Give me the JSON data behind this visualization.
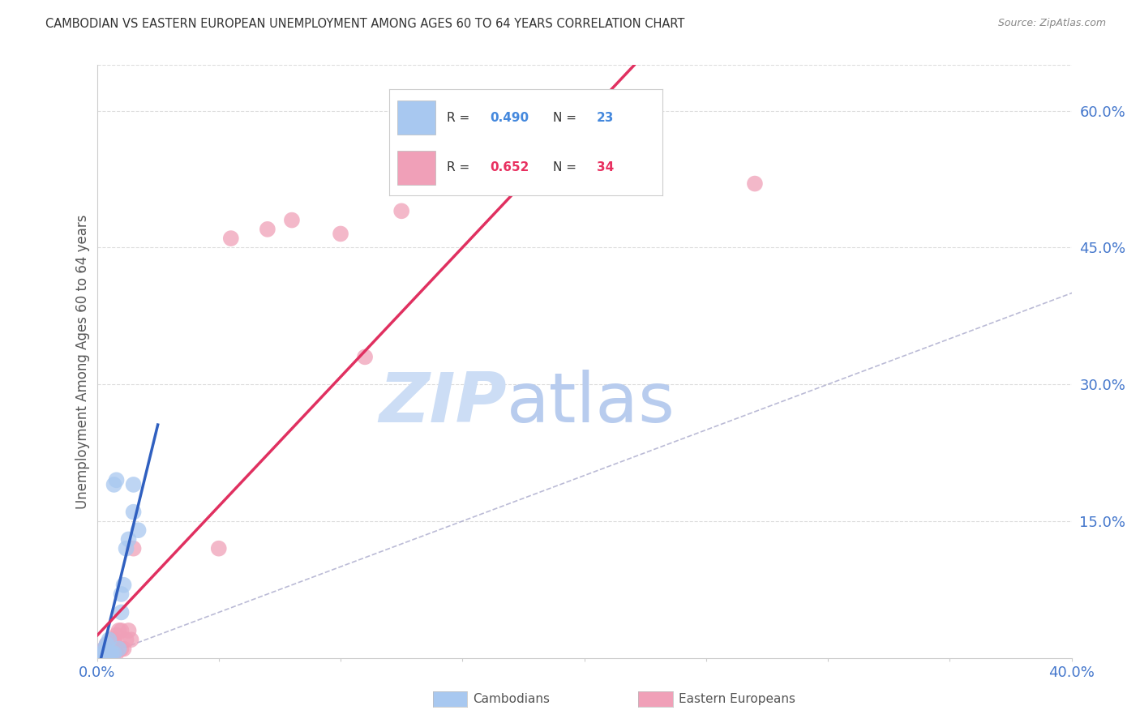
{
  "title": "CAMBODIAN VS EASTERN EUROPEAN UNEMPLOYMENT AMONG AGES 60 TO 64 YEARS CORRELATION CHART",
  "source": "Source: ZipAtlas.com",
  "ylabel": "Unemployment Among Ages 60 to 64 years",
  "legend_R_blue": "0.490",
  "legend_N_blue": "23",
  "legend_R_pink": "0.652",
  "legend_N_pink": "34",
  "blue_color": "#a8c8f0",
  "pink_color": "#f0a0b8",
  "blue_line_color": "#3060c0",
  "pink_line_color": "#e03060",
  "xlim": [
    0.0,
    0.4
  ],
  "ylim": [
    0.0,
    0.65
  ],
  "xtick_positions": [
    0.0,
    0.05,
    0.1,
    0.15,
    0.2,
    0.25,
    0.3,
    0.35,
    0.4
  ],
  "xtick_labels": [
    "0.0%",
    "",
    "",
    "",
    "",
    "",
    "",
    "",
    "40.0%"
  ],
  "yticks_right": [
    0.15,
    0.3,
    0.45,
    0.6
  ],
  "ytick_labels_right": [
    "15.0%",
    "30.0%",
    "45.0%",
    "60.0%"
  ],
  "watermark_zip": "ZIP",
  "watermark_atlas": "atlas",
  "cambodian_x": [
    0.0,
    0.001,
    0.001,
    0.002,
    0.003,
    0.003,
    0.004,
    0.004,
    0.005,
    0.005,
    0.006,
    0.007,
    0.007,
    0.008,
    0.009,
    0.01,
    0.01,
    0.011,
    0.012,
    0.013,
    0.015,
    0.015,
    0.017
  ],
  "cambodian_y": [
    0.001,
    0.0,
    0.002,
    0.005,
    0.005,
    0.01,
    0.005,
    0.015,
    0.005,
    0.02,
    0.005,
    0.005,
    0.19,
    0.195,
    0.01,
    0.05,
    0.07,
    0.08,
    0.12,
    0.13,
    0.16,
    0.19,
    0.14
  ],
  "eastern_x": [
    0.0,
    0.001,
    0.001,
    0.002,
    0.002,
    0.003,
    0.003,
    0.004,
    0.004,
    0.005,
    0.005,
    0.006,
    0.006,
    0.007,
    0.007,
    0.008,
    0.008,
    0.009,
    0.009,
    0.01,
    0.01,
    0.011,
    0.012,
    0.013,
    0.014,
    0.015,
    0.05,
    0.055,
    0.07,
    0.08,
    0.1,
    0.11,
    0.125,
    0.27
  ],
  "eastern_y": [
    0.0,
    0.001,
    0.005,
    0.003,
    0.007,
    0.005,
    0.01,
    0.005,
    0.015,
    0.005,
    0.015,
    0.005,
    0.02,
    0.005,
    0.02,
    0.005,
    0.025,
    0.01,
    0.03,
    0.01,
    0.03,
    0.01,
    0.02,
    0.03,
    0.02,
    0.12,
    0.12,
    0.46,
    0.47,
    0.48,
    0.465,
    0.33,
    0.49,
    0.52
  ],
  "background_color": "#ffffff",
  "grid_color": "#dddddd"
}
